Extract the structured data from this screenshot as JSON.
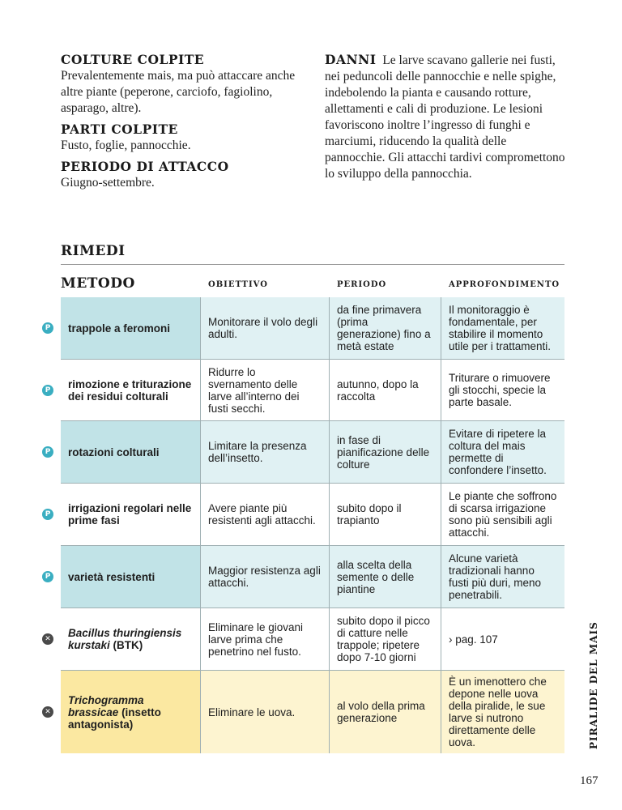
{
  "intro": {
    "colture_title": "COLTURE COLPITE",
    "colture_text": "Prevalentemente mais, ma può attaccare anche altre piante (peperone, carciofo, fagiolino, asparago, altre).",
    "parti_title": "PARTI COLPITE",
    "parti_text": "Fusto, foglie, pannocchie.",
    "periodo_title": "PERIODO DI ATTACCO",
    "periodo_text": "Giugno-settembre.",
    "danni_title": "DANNI",
    "danni_text": "Le larve scavano gallerie nei fusti, nei peduncoli delle pannocchie e nelle spighe, indebolendo la pianta e causando rotture, allettamenti e cali di produzione. Le lesioni favoriscono inoltre l’ingresso di funghi e marciumi, riducendo la qualità delle pannocchie. Gli attacchi tardivi compromettono lo sviluppo della pannocchia."
  },
  "rimedi": {
    "title": "RIMEDI",
    "headers": [
      "METODO",
      "OBIETTIVO",
      "PERIODO",
      "APPROFONDIMENTO"
    ],
    "icons": {
      "P": {
        "label": "P",
        "color": "#3aaec1",
        "name": "organic-allowed-icon"
      },
      "X": {
        "label": "✕",
        "color": "#4a4a4a",
        "name": "not-allowed-icon"
      }
    },
    "rows": [
      {
        "icon": "P",
        "tint": "teal",
        "method": [
          {
            "t": "trappole a feromoni",
            "i": false
          }
        ],
        "obiettivo": "Monitorare il volo degli adulti.",
        "periodo": "da fine primavera (prima generazione) fino a metà estate",
        "approfondimento": "Il monitoraggio è fondamentale, per stabilire il momento utile per i trattamenti."
      },
      {
        "icon": "P",
        "tint": "white",
        "method": [
          {
            "t": "rimozione e triturazione dei residui colturali",
            "i": false
          }
        ],
        "obiettivo": "Ridurre lo svernamento delle larve all’interno dei fusti secchi.",
        "periodo": "autunno, dopo la raccolta",
        "approfondimento": "Triturare o rimuovere gli stocchi, specie la parte basale."
      },
      {
        "icon": "P",
        "tint": "teal",
        "method": [
          {
            "t": "rotazioni colturali",
            "i": false
          }
        ],
        "obiettivo": "Limitare la presenza dell’insetto.",
        "periodo": "in fase di pianificazione delle colture",
        "approfondimento": "Evitare di ripetere la coltura del mais permette di confondere l’insetto."
      },
      {
        "icon": "P",
        "tint": "white",
        "method": [
          {
            "t": "irrigazioni regolari nelle prime fasi",
            "i": false
          }
        ],
        "obiettivo": "Avere piante più resistenti agli attacchi.",
        "periodo": "subito dopo il trapianto",
        "approfondimento": "Le piante che soffrono di scarsa irrigazione sono più sensibili agli attacchi."
      },
      {
        "icon": "P",
        "tint": "teal",
        "method": [
          {
            "t": "varietà resistenti",
            "i": false
          }
        ],
        "obiettivo": "Maggior resistenza agli attacchi.",
        "periodo": "alla scelta della semente o delle piantine",
        "approfondimento": "Alcune varietà tradizionali hanno fusti più duri, meno penetrabili."
      },
      {
        "icon": "X",
        "tint": "white",
        "method": [
          {
            "t": "Bacillus thuringiensis kurstaki",
            "i": true
          },
          {
            "t": " (BTK)",
            "i": false
          }
        ],
        "obiettivo": "Eliminare le giovani larve prima che penetrino nel fusto.",
        "periodo": "subito dopo il picco di catture nelle trappole; ripetere dopo 7-10 giorni",
        "approfondimento": "› pag. 107"
      },
      {
        "icon": "X",
        "tint": "yellow",
        "method": [
          {
            "t": "Trichogramma brassicae",
            "i": true
          },
          {
            "t": " (insetto antagonista)",
            "i": false
          }
        ],
        "obiettivo": "Eliminare le uova.",
        "periodo": "al volo della prima generazione",
        "approfondimento": "È un imenottero che depone nelle uova della piralide, le sue larve si nutrono direttamente delle uova."
      }
    ]
  },
  "side_title": "PIRALIDE DEL MAIS",
  "page_number": "167"
}
